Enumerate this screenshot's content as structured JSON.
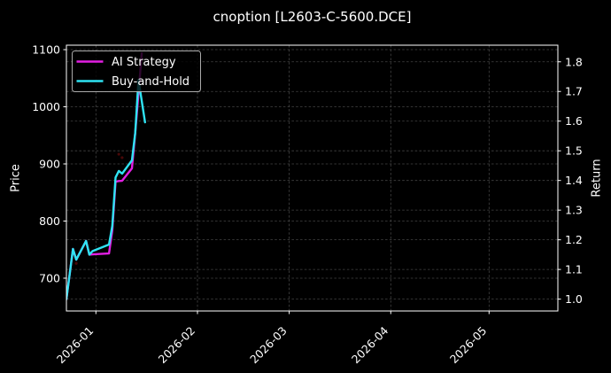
{
  "chart_data": {
    "type": "line",
    "title": "cnoption [L2603-C-5600.DCE]",
    "xlabel": "",
    "ylabel_left": "Price",
    "ylabel_right": "Return",
    "x_range": [
      "2025-12-23",
      "2026-05-22"
    ],
    "x_ticks": [
      "2026-01",
      "2026-02",
      "2026-03",
      "2026-04",
      "2026-05"
    ],
    "ylim_left": [
      642.6,
      1107.8
    ],
    "ylim_right": [
      0.96,
      1.856
    ],
    "yticks_left": [
      700,
      800,
      900,
      1000,
      1100
    ],
    "yticks_right": [
      1.0,
      1.1,
      1.2,
      1.3,
      1.4,
      1.5,
      1.6,
      1.7,
      1.8
    ],
    "grid": true,
    "legend_position": "upper left",
    "series": [
      {
        "name": "AI Strategy",
        "axis": "right",
        "color": "#e31fe3",
        "x": [
          "2025-12-23",
          "2025-12-25",
          "2025-12-26",
          "2025-12-29",
          "2025-12-30",
          "2025-12-31",
          "2026-01-05",
          "2026-01-06",
          "2026-01-07",
          "2026-01-08",
          "2026-01-09",
          "2026-01-12",
          "2026-01-13",
          "2026-01-14",
          "2026-01-15"
        ],
        "values": [
          1.0,
          1.169,
          1.133,
          1.196,
          1.15,
          1.151,
          1.154,
          1.232,
          1.396,
          1.398,
          1.399,
          1.441,
          1.56,
          1.694,
          1.829
        ]
      },
      {
        "name": "Buy-and-Hold",
        "axis": "right",
        "color": "#2fe3f2",
        "x": [
          "2025-12-23",
          "2025-12-25",
          "2025-12-26",
          "2025-12-29",
          "2025-12-30",
          "2025-12-31",
          "2026-01-05",
          "2026-01-06",
          "2026-01-07",
          "2026-01-08",
          "2026-01-09",
          "2026-01-12",
          "2026-01-13",
          "2026-01-14",
          "2026-01-16"
        ],
        "values": [
          1.0,
          1.169,
          1.133,
          1.196,
          1.15,
          1.162,
          1.184,
          1.247,
          1.41,
          1.432,
          1.423,
          1.468,
          1.56,
          1.739,
          1.596
        ]
      }
    ],
    "signal_markers": {
      "axis": "left",
      "color": "#6a0c0c",
      "points": [
        {
          "date": "2025-12-26",
          "price": 726
        },
        {
          "date": "2026-01-08",
          "price": 917
        },
        {
          "date": "2026-01-09",
          "price": 911
        }
      ]
    }
  }
}
